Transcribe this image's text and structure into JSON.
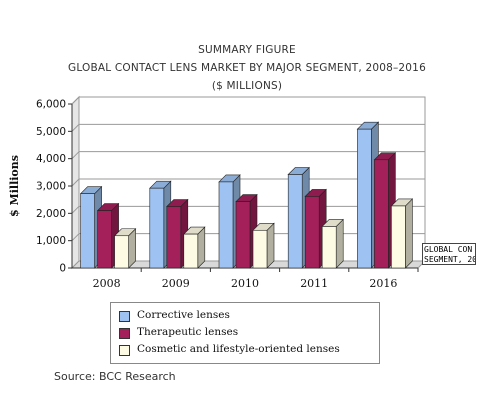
{
  "chart_data": {
    "type": "bar",
    "title_lines": [
      "SUMMARY FIGURE",
      "GLOBAL CONTACT LENS MARKET BY MAJOR SEGMENT, 2008–2016",
      "($ MILLIONS)"
    ],
    "ylabel": "$ Millions",
    "xlabel": "",
    "categories": [
      "2008",
      "2009",
      "2010",
      "2011",
      "2016"
    ],
    "ylim": [
      0,
      6000
    ],
    "yticks": [
      "0",
      "1,000",
      "2,000",
      "3,000",
      "4,000",
      "5,000",
      "6,000"
    ],
    "grid": true,
    "style": "3d-clustered",
    "legend_position": "bottom",
    "series": [
      {
        "name": "Corrective lenses",
        "color": "#9ec3f2",
        "values": [
          2720,
          2920,
          3150,
          3420,
          5080
        ]
      },
      {
        "name": "Therapeutic lenses",
        "color": "#a3205a",
        "values": [
          2100,
          2250,
          2430,
          2620,
          3960
        ]
      },
      {
        "name": "Cosmetic and lifestyle-oriented lenses",
        "color": "#fdfbe4",
        "values": [
          1180,
          1240,
          1380,
          1520,
          2270
        ]
      }
    ],
    "source": "Source: BCC Research",
    "tooltip_lines": [
      "GLOBAL CON",
      "SEGMENT, 20"
    ]
  }
}
